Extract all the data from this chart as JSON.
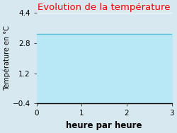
{
  "title": "Evolution de la température",
  "xlabel": "heure par heure",
  "ylabel": "Température en °C",
  "xlim": [
    0,
    3
  ],
  "ylim": [
    -0.4,
    4.4
  ],
  "yticks": [
    -0.4,
    1.2,
    2.8,
    4.4
  ],
  "xticks": [
    0,
    1,
    2,
    3
  ],
  "line_y": 3.3,
  "fill_color": "#b8e8f5",
  "line_color": "#55c0d8",
  "background_color": "#d8e8f0",
  "plot_bg_color": "#d8e8f0",
  "title_color": "#ff0000",
  "title_fontsize": 9.5,
  "xlabel_fontsize": 8.5,
  "ylabel_fontsize": 7,
  "tick_fontsize": 7.5
}
